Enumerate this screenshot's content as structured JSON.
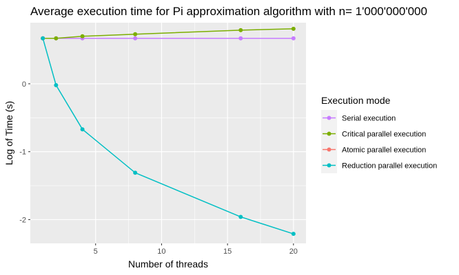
{
  "chart_data": {
    "type": "line",
    "title": "Average execution time for Pi approximation algorithm with n= 1'000'000'000",
    "xlabel": "Number of threads",
    "ylabel": "Log of Time (s)",
    "xlim": [
      0.05,
      20.95
    ],
    "ylim": [
      -2.35,
      0.9
    ],
    "x_ticks": [
      5,
      10,
      15,
      20
    ],
    "x_tick_labels": [
      "5",
      "10",
      "15",
      "20"
    ],
    "y_ticks": [
      -2,
      -1,
      0
    ],
    "y_tick_labels": [
      "-2",
      "-1",
      "0"
    ],
    "grid": true,
    "legend": {
      "title": "Execution mode",
      "position": "right"
    },
    "series": [
      {
        "name": "Serial execution",
        "color": "#C77CFF",
        "x": [
          1,
          2,
          4,
          8,
          16,
          20
        ],
        "y": [
          0.67,
          0.67,
          0.67,
          0.67,
          0.67,
          0.67
        ]
      },
      {
        "name": "Critical parallel execution",
        "color": "#7CAE00",
        "x": [
          1,
          2,
          4,
          8,
          16,
          20
        ],
        "y": [
          0.67,
          0.67,
          0.7,
          0.73,
          0.79,
          0.81
        ]
      },
      {
        "name": "Atomic parallel execution",
        "color": "#F8766D",
        "x": [
          1
        ],
        "y": [
          0.67
        ]
      },
      {
        "name": "Reduction parallel execution",
        "color": "#00BFC4",
        "x": [
          1,
          2,
          4,
          8,
          16,
          20
        ],
        "y": [
          0.67,
          -0.02,
          -0.67,
          -1.31,
          -1.96,
          -2.21
        ]
      }
    ]
  }
}
